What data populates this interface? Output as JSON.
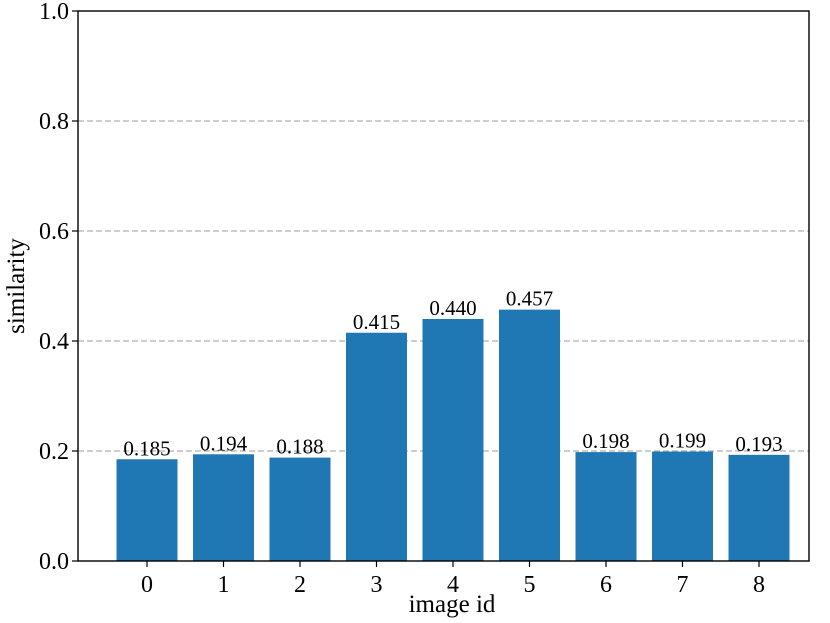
{
  "chart_data": {
    "type": "bar",
    "title": "",
    "xlabel": "image id",
    "ylabel": "similarity",
    "categories": [
      "0",
      "1",
      "2",
      "3",
      "4",
      "5",
      "6",
      "7",
      "8"
    ],
    "values": [
      0.185,
      0.194,
      0.188,
      0.415,
      0.44,
      0.457,
      0.198,
      0.199,
      0.193
    ],
    "value_labels": [
      "0.185",
      "0.194",
      "0.188",
      "0.415",
      "0.440",
      "0.457",
      "0.198",
      "0.199",
      "0.193"
    ],
    "ylim": [
      0.0,
      1.0
    ],
    "yticks": [
      "0.0",
      "0.2",
      "0.4",
      "0.6",
      "0.8",
      "1.0"
    ],
    "grid": "y-dashed",
    "bar_color": "#1f77b4"
  }
}
